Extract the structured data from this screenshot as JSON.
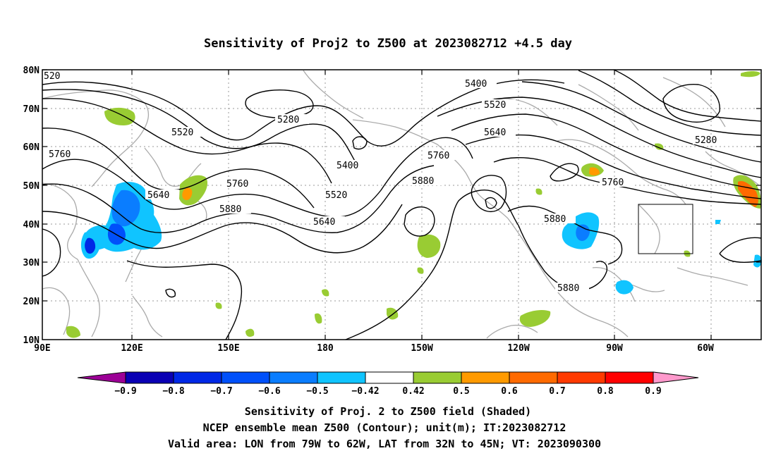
{
  "title": "Sensitivity of Proj2 to Z500 at 2023082712 +4.5 day",
  "lat_labels": [
    "80N",
    "70N",
    "60N",
    "50N",
    "40N",
    "30N",
    "20N",
    "10N"
  ],
  "lon_labels": [
    "90E",
    "120E",
    "150E",
    "180",
    "150W",
    "120W",
    "90W",
    "60W"
  ],
  "contour_labels": [
    "520",
    "5280",
    "5400",
    "5520",
    "5520",
    "5640",
    "5760",
    "5400",
    "5520",
    "5640",
    "5880",
    "5760",
    "5640",
    "5880",
    "5880",
    "5760",
    "5880",
    "5280"
  ],
  "colorbar": {
    "ticks": [
      "-0.9",
      "-0.8",
      "-0.7",
      "-0.6",
      "-0.5",
      "-0.42",
      "0.42",
      "0.5",
      "0.6",
      "0.7",
      "0.8",
      "0.9"
    ],
    "colors": [
      "#9c0096",
      "#0a00b4",
      "#0028e6",
      "#0050fa",
      "#0a7dff",
      "#10c4ff",
      "#ffffff",
      "#99cc33",
      "#ff9a00",
      "#ff6a00",
      "#ff3a00",
      "#ff0000",
      "#ff99cc"
    ]
  },
  "captions": [
    "Sensitivity of Proj. 2 to Z500 field (Shaded)",
    "NCEP ensemble mean Z500 (Contour); unit(m); IT:2023082712",
    "Valid area: LON from 79W to 62W, LAT from 32N to 45N; VT: 2023090300"
  ],
  "colors": {
    "contour": "#000000",
    "coast": "#aaaaaa",
    "grid": "#999999"
  }
}
